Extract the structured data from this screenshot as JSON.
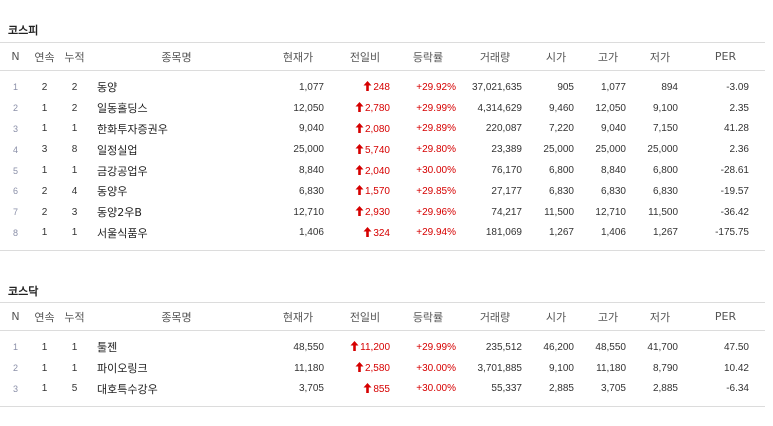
{
  "sections": [
    {
      "title": "코스피",
      "headers": [
        "N",
        "연속",
        "누적",
        "종목명",
        "현재가",
        "전일비",
        "등락률",
        "거래량",
        "시가",
        "고가",
        "저가",
        "PER"
      ],
      "rows": [
        {
          "n": "1",
          "streak": "2",
          "cum": "2",
          "name": "동양",
          "price": "1,077",
          "change": "248",
          "rate": "+29.92%",
          "volume": "37,021,635",
          "open": "905",
          "high": "1,077",
          "low": "894",
          "per": "-3.09"
        },
        {
          "n": "2",
          "streak": "1",
          "cum": "2",
          "name": "일동홀딩스",
          "price": "12,050",
          "change": "2,780",
          "rate": "+29.99%",
          "volume": "4,314,629",
          "open": "9,460",
          "high": "12,050",
          "low": "9,100",
          "per": "2.35"
        },
        {
          "n": "3",
          "streak": "1",
          "cum": "1",
          "name": "한화투자증권우",
          "price": "9,040",
          "change": "2,080",
          "rate": "+29.89%",
          "volume": "220,087",
          "open": "7,220",
          "high": "9,040",
          "low": "7,150",
          "per": "41.28"
        },
        {
          "n": "4",
          "streak": "3",
          "cum": "8",
          "name": "일정실업",
          "price": "25,000",
          "change": "5,740",
          "rate": "+29.80%",
          "volume": "23,389",
          "open": "25,000",
          "high": "25,000",
          "low": "25,000",
          "per": "2.36"
        },
        {
          "n": "5",
          "streak": "1",
          "cum": "1",
          "name": "금강공업우",
          "price": "8,840",
          "change": "2,040",
          "rate": "+30.00%",
          "volume": "76,170",
          "open": "6,800",
          "high": "8,840",
          "low": "6,800",
          "per": "-28.61"
        },
        {
          "n": "6",
          "streak": "2",
          "cum": "4",
          "name": "동양우",
          "price": "6,830",
          "change": "1,570",
          "rate": "+29.85%",
          "volume": "27,177",
          "open": "6,830",
          "high": "6,830",
          "low": "6,830",
          "per": "-19.57"
        },
        {
          "n": "7",
          "streak": "2",
          "cum": "3",
          "name": "동양2우B",
          "price": "12,710",
          "change": "2,930",
          "rate": "+29.96%",
          "volume": "74,217",
          "open": "11,500",
          "high": "12,710",
          "low": "11,500",
          "per": "-36.42"
        },
        {
          "n": "8",
          "streak": "1",
          "cum": "1",
          "name": "서울식품우",
          "price": "1,406",
          "change": "324",
          "rate": "+29.94%",
          "volume": "181,069",
          "open": "1,267",
          "high": "1,406",
          "low": "1,267",
          "per": "-175.75"
        }
      ]
    },
    {
      "title": "코스닥",
      "headers": [
        "N",
        "연속",
        "누적",
        "종목명",
        "현재가",
        "전일비",
        "등락률",
        "거래량",
        "시가",
        "고가",
        "저가",
        "PER"
      ],
      "rows": [
        {
          "n": "1",
          "streak": "1",
          "cum": "1",
          "name": "툴젠",
          "price": "48,550",
          "change": "11,200",
          "rate": "+29.99%",
          "volume": "235,512",
          "open": "46,200",
          "high": "48,550",
          "low": "41,700",
          "per": "47.50"
        },
        {
          "n": "2",
          "streak": "1",
          "cum": "1",
          "name": "파이오링크",
          "price": "11,180",
          "change": "2,580",
          "rate": "+30.00%",
          "volume": "3,701,885",
          "open": "9,100",
          "high": "11,180",
          "low": "8,790",
          "per": "10.42"
        },
        {
          "n": "3",
          "streak": "1",
          "cum": "5",
          "name": "대호특수강우",
          "price": "3,705",
          "change": "855",
          "rate": "+30.00%",
          "volume": "55,337",
          "open": "2,885",
          "high": "3,705",
          "low": "2,885",
          "per": "-6.34"
        }
      ]
    }
  ],
  "colors": {
    "up": "#d60000",
    "index": "#8a8fa8",
    "border": "#dcdcdc"
  },
  "icons": {
    "change_direction": "up-arrow-icon"
  }
}
